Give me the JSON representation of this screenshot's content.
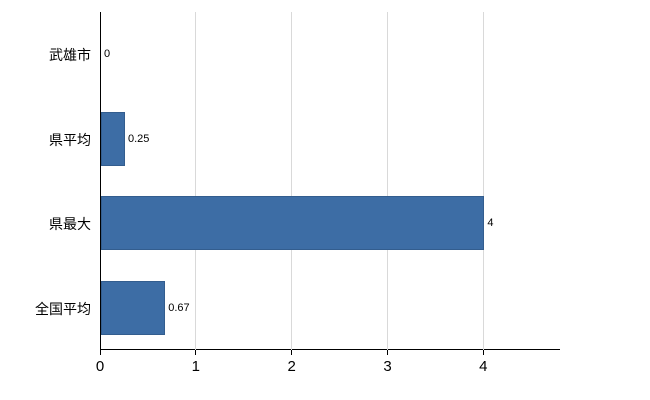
{
  "chart_data": {
    "type": "bar",
    "orientation": "horizontal",
    "title": "",
    "xlabel": "",
    "ylabel": "",
    "categories": [
      "武雄市",
      "県平均",
      "県最大",
      "全国平均"
    ],
    "values": [
      0,
      0.25,
      4,
      0.67
    ],
    "value_labels": [
      "0",
      "0.25",
      "4",
      "0.67"
    ],
    "xlim": [
      0,
      4.8
    ],
    "xticks": [
      0,
      1,
      2,
      3,
      4
    ],
    "grid": "vertical",
    "legend": "none",
    "bar_color": "#3d6da5",
    "grid_color": "#d9d9d9",
    "axis_color": "#000000",
    "background_color": "#ffffff"
  }
}
